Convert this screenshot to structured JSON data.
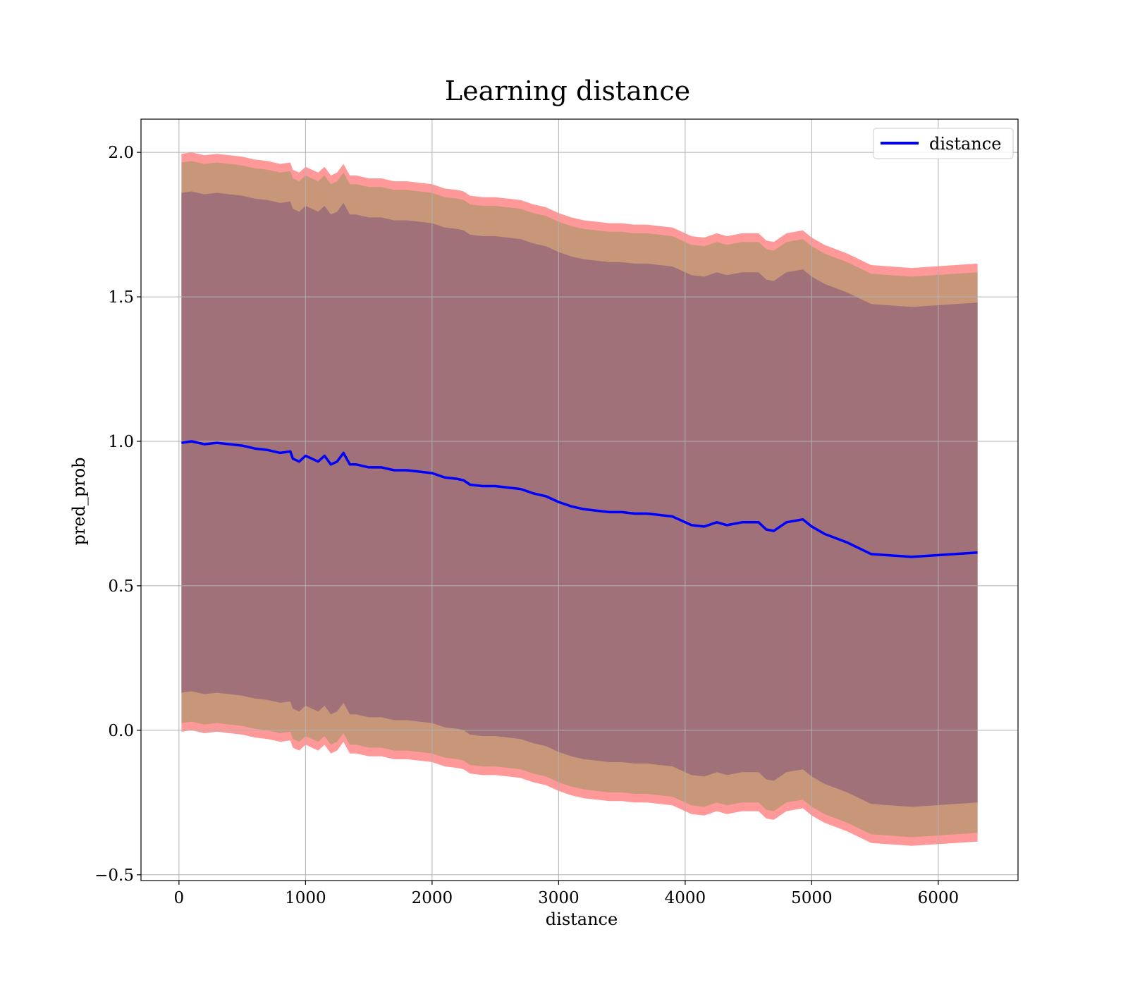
{
  "chart_data": {
    "type": "line",
    "title": "Learning distance",
    "xlabel": "distance",
    "ylabel": "pred_prob",
    "xlim": [
      -300,
      6630
    ],
    "ylim": [
      -0.52,
      2.115
    ],
    "grid": true,
    "legend_position": "top-right",
    "x_ticks": [
      0,
      1000,
      2000,
      3000,
      4000,
      5000,
      6000
    ],
    "x_tick_labels": [
      "0",
      "1000",
      "2000",
      "3000",
      "4000",
      "5000",
      "6000"
    ],
    "y_ticks": [
      -0.5,
      0.0,
      0.5,
      1.0,
      1.5,
      2.0
    ],
    "y_tick_labels": [
      "−0.5",
      "0.0",
      "0.5",
      "1.0",
      "1.5",
      "2.0"
    ],
    "colors": {
      "line": "#0000ff",
      "band_outer": "#ff9999",
      "band_middle": "#c8977a",
      "band_inner": "#a07178",
      "grid": "#b0b0b0"
    },
    "series": [
      {
        "name": "distance",
        "x": [
          20,
          100,
          200,
          300,
          400,
          500,
          600,
          700,
          800,
          880,
          900,
          950,
          1000,
          1100,
          1150,
          1200,
          1250,
          1300,
          1350,
          1400,
          1500,
          1600,
          1700,
          1800,
          1900,
          2000,
          2100,
          2200,
          2250,
          2300,
          2400,
          2500,
          2600,
          2700,
          2800,
          2900,
          3000,
          3100,
          3200,
          3300,
          3400,
          3500,
          3600,
          3700,
          3800,
          3900,
          4000,
          4050,
          4150,
          4250,
          4330,
          4450,
          4580,
          4640,
          4700,
          4800,
          4930,
          5000,
          5100,
          5280,
          5470,
          5790,
          6310
        ],
        "y": [
          0.995,
          1.0,
          0.99,
          0.995,
          0.99,
          0.985,
          0.975,
          0.97,
          0.96,
          0.965,
          0.94,
          0.93,
          0.95,
          0.93,
          0.95,
          0.92,
          0.93,
          0.96,
          0.92,
          0.92,
          0.91,
          0.91,
          0.9,
          0.9,
          0.895,
          0.89,
          0.875,
          0.87,
          0.865,
          0.85,
          0.845,
          0.845,
          0.84,
          0.835,
          0.82,
          0.81,
          0.79,
          0.775,
          0.765,
          0.76,
          0.755,
          0.755,
          0.75,
          0.75,
          0.745,
          0.74,
          0.72,
          0.71,
          0.705,
          0.72,
          0.71,
          0.72,
          0.72,
          0.695,
          0.69,
          0.72,
          0.73,
          0.705,
          0.68,
          0.65,
          0.61,
          0.6,
          0.615
        ],
        "bands": [
          {
            "level": "outer",
            "half_width": [
              1.0,
              1.0,
              1.0,
              1.0,
              1.0,
              1.0,
              1.0,
              1.0,
              1.0,
              1.0,
              1.0,
              1.0,
              1.0,
              1.0,
              1.0,
              1.0,
              1.0,
              1.0,
              1.0,
              1.0,
              1.0,
              1.0,
              1.0,
              1.0,
              1.0,
              1.0,
              1.0,
              1.0,
              1.0,
              1.0,
              1.0,
              1.0,
              1.0,
              1.0,
              1.0,
              1.0,
              1.0,
              1.0,
              1.0,
              1.0,
              1.0,
              1.0,
              1.0,
              1.0,
              1.0,
              1.0,
              1.0,
              1.0,
              1.0,
              1.0,
              1.0,
              1.0,
              1.0,
              1.0,
              1.0,
              1.0,
              1.0,
              1.0,
              1.0,
              1.0,
              1.0,
              1.0,
              1.0
            ]
          },
          {
            "level": "middle",
            "half_width": [
              0.97,
              0.97,
              0.97,
              0.97,
              0.97,
              0.97,
              0.97,
              0.97,
              0.97,
              0.97,
              0.97,
              0.97,
              0.97,
              0.97,
              0.97,
              0.97,
              0.97,
              0.97,
              0.97,
              0.97,
              0.97,
              0.97,
              0.97,
              0.97,
              0.97,
              0.97,
              0.97,
              0.97,
              0.97,
              0.97,
              0.97,
              0.97,
              0.97,
              0.97,
              0.97,
              0.97,
              0.97,
              0.97,
              0.97,
              0.97,
              0.97,
              0.97,
              0.97,
              0.97,
              0.97,
              0.97,
              0.97,
              0.97,
              0.97,
              0.97,
              0.97,
              0.97,
              0.97,
              0.97,
              0.97,
              0.97,
              0.97,
              0.97,
              0.97,
              0.97,
              0.97,
              0.97,
              0.97
            ]
          },
          {
            "level": "inner",
            "half_width": [
              0.865,
              0.865,
              0.865,
              0.865,
              0.865,
              0.865,
              0.865,
              0.865,
              0.865,
              0.865,
              0.865,
              0.865,
              0.865,
              0.865,
              0.865,
              0.865,
              0.865,
              0.865,
              0.865,
              0.865,
              0.865,
              0.865,
              0.865,
              0.865,
              0.865,
              0.865,
              0.865,
              0.865,
              0.865,
              0.865,
              0.865,
              0.865,
              0.865,
              0.865,
              0.865,
              0.865,
              0.865,
              0.865,
              0.865,
              0.865,
              0.865,
              0.865,
              0.865,
              0.865,
              0.865,
              0.865,
              0.865,
              0.865,
              0.865,
              0.865,
              0.865,
              0.865,
              0.865,
              0.865,
              0.865,
              0.865,
              0.865,
              0.865,
              0.865,
              0.865,
              0.865,
              0.865,
              0.865
            ]
          }
        ]
      }
    ]
  }
}
